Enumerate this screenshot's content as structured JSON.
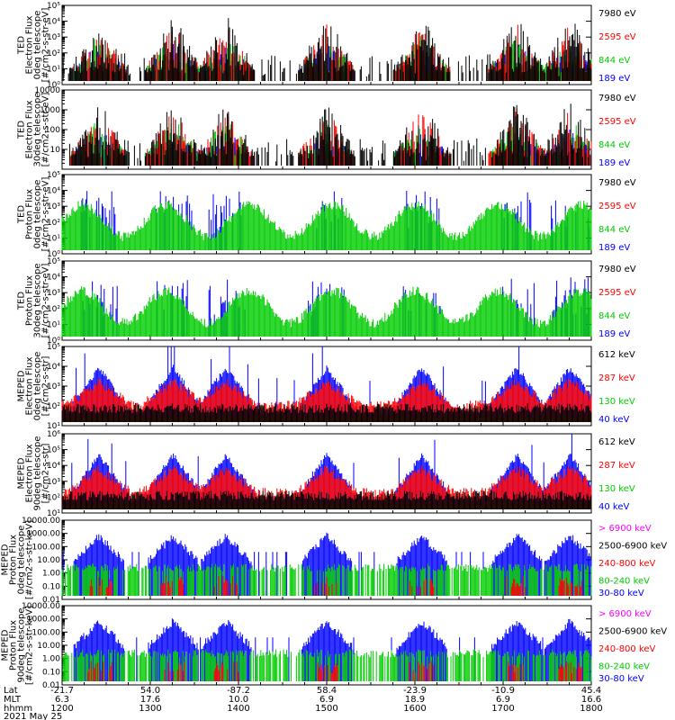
{
  "chart_data": {
    "type": "line",
    "date_label": "2021 May 25",
    "x_axis": {
      "rows": [
        "Lat",
        "MLT",
        "hhmm"
      ],
      "ticks": [
        {
          "lat": "-21.7",
          "mlt": "6.3",
          "hhmm": "1200"
        },
        {
          "lat": "54.0",
          "mlt": "17.6",
          "hhmm": "1300"
        },
        {
          "lat": "-87.2",
          "mlt": "10.0",
          "hhmm": "1400"
        },
        {
          "lat": "58.4",
          "mlt": "6.9",
          "hhmm": "1500"
        },
        {
          "lat": "-23.9",
          "mlt": "18.9",
          "hhmm": "1600"
        },
        {
          "lat": "-10.9",
          "mlt": "6.9",
          "hhmm": "1700"
        },
        {
          "lat": "45.4",
          "mlt": "16.6",
          "hhmm": "1800"
        }
      ],
      "xlim": [
        1200,
        1800
      ]
    },
    "panels": [
      {
        "ylabel": [
          "TED",
          "Electron Flux",
          "0deg telescope",
          "[#/cm2-s-str-eV]"
        ],
        "yscale": "log",
        "ylim": [
          1,
          100000
        ],
        "yticks": [
          "10⁰",
          "10¹",
          "10²",
          "10³",
          "10⁴",
          "10⁵"
        ],
        "series": [
          {
            "name": "7980 eV",
            "color": "#000000"
          },
          {
            "name": "2595 eV",
            "color": "#ff0000"
          },
          {
            "name": "844 eV",
            "color": "#00cc00"
          },
          {
            "name": "189 eV",
            "color": "#0000ff"
          }
        ]
      },
      {
        "ylabel": [
          "TED",
          "Electron Flux",
          "30deg telescope",
          "[#/cm2-s-str-eV]"
        ],
        "yscale": "log",
        "ylim": [
          1,
          10000
        ],
        "yticks": [
          "",
          "10",
          "100",
          "1000",
          "10000"
        ],
        "series": [
          {
            "name": "7980 eV",
            "color": "#000000"
          },
          {
            "name": "2595 eV",
            "color": "#ff0000"
          },
          {
            "name": "844 eV",
            "color": "#00cc00"
          },
          {
            "name": "189 eV",
            "color": "#0000ff"
          }
        ]
      },
      {
        "ylabel": [
          "TED",
          "Proton Flux",
          "0deg telescope",
          "[#/cm2-s-str-eV]"
        ],
        "yscale": "log",
        "ylim": [
          1,
          100000
        ],
        "yticks": [
          "10⁰",
          "10¹",
          "10²",
          "10³",
          "10⁴",
          "10⁵"
        ],
        "series": [
          {
            "name": "7980 eV",
            "color": "#000000"
          },
          {
            "name": "2595 eV",
            "color": "#ff0000"
          },
          {
            "name": "844 eV",
            "color": "#00cc00"
          },
          {
            "name": "189 eV",
            "color": "#0000ff"
          }
        ]
      },
      {
        "ylabel": [
          "TED",
          "Proton Flux",
          "30deg telescope",
          "[#/cm2-s-str-eV]"
        ],
        "yscale": "log",
        "ylim": [
          1,
          100000
        ],
        "yticks": [
          "10⁰",
          "10¹",
          "10²",
          "10³",
          "10⁴",
          "10⁵"
        ],
        "series": [
          {
            "name": "7980 eV",
            "color": "#000000"
          },
          {
            "name": "2595 eV",
            "color": "#ff0000"
          },
          {
            "name": "844 eV",
            "color": "#00cc00"
          },
          {
            "name": "189 eV",
            "color": "#0000ff"
          }
        ]
      },
      {
        "ylabel": [
          "MEPED",
          "Electron Flux",
          "0deg telescope",
          "[#/cm2-s-str]"
        ],
        "yscale": "log",
        "ylim": [
          10,
          100000
        ],
        "yticks": [
          "10¹",
          "10²",
          "10³",
          "10⁴",
          "10⁵"
        ],
        "series": [
          {
            "name": "612 keV",
            "color": "#000000"
          },
          {
            "name": "287 keV",
            "color": "#ff0000"
          },
          {
            "name": "130 keV",
            "color": "#00cc00"
          },
          {
            "name": "40 keV",
            "color": "#0000ff"
          }
        ]
      },
      {
        "ylabel": [
          "MEPED",
          "Electron Flux",
          "90deg telescope",
          "[#/cm2-s-str]"
        ],
        "yscale": "log",
        "ylim": [
          10,
          1000000
        ],
        "yticks": [
          "10¹",
          "10²",
          "10³",
          "10⁴",
          "10⁵",
          "10⁶"
        ],
        "series": [
          {
            "name": "612 keV",
            "color": "#000000"
          },
          {
            "name": "287 keV",
            "color": "#ff0000"
          },
          {
            "name": "130 keV",
            "color": "#00cc00"
          },
          {
            "name": "40 keV",
            "color": "#0000ff"
          }
        ]
      },
      {
        "ylabel": [
          "MEPED",
          "Proton Flux",
          "0deg telescope",
          "[#/cm2-s-str-keV]"
        ],
        "yscale": "log",
        "ylim": [
          0.01,
          10000
        ],
        "yticks": [
          "0.01",
          "0.10",
          "1.00",
          "10.00",
          "100.00",
          "1000.00",
          "10000.00"
        ],
        "series": [
          {
            "name": "> 6900 keV",
            "color": "#ff00ff"
          },
          {
            "name": "2500-6900 keV",
            "color": "#000000"
          },
          {
            "name": "240-800 keV",
            "color": "#ff0000"
          },
          {
            "name": "80-240 keV",
            "color": "#00cc00"
          },
          {
            "name": "30-80 keV",
            "color": "#0000ff"
          }
        ]
      },
      {
        "ylabel": [
          "MEPED",
          "Proton Flux",
          "90deg telescope",
          "[#/cm2-s-str-keV]"
        ],
        "yscale": "log",
        "ylim": [
          0.01,
          10000
        ],
        "yticks": [
          "0.01",
          "0.10",
          "1.00",
          "10.00",
          "100.00",
          "1000.00",
          "10000.00"
        ],
        "series": [
          {
            "name": "> 6900 keV",
            "color": "#ff00ff"
          },
          {
            "name": "2500-6900 keV",
            "color": "#000000"
          },
          {
            "name": "240-800 keV",
            "color": "#ff0000"
          },
          {
            "name": "80-240 keV",
            "color": "#00cc00"
          },
          {
            "name": "30-80 keV",
            "color": "#0000ff"
          }
        ]
      }
    ]
  }
}
